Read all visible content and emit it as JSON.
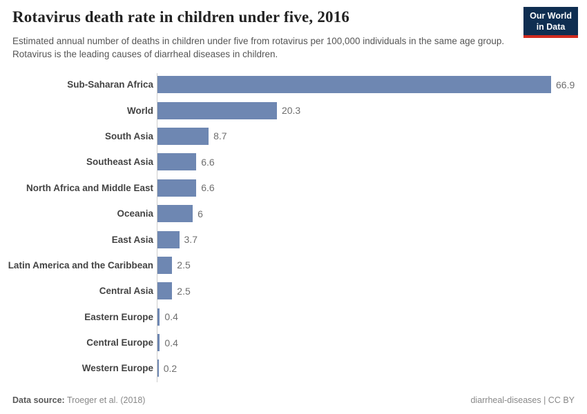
{
  "header": {
    "title": "Rotavirus death rate in children under five, 2016",
    "subtitle": "Estimated annual number of deaths in children under five from rotavirus per 100,000 individuals in the same age group. Rotavirus is the leading causes of diarrheal diseases in children.",
    "logo": {
      "line1": "Our World",
      "line2": "in Data",
      "bg_color": "#0f2e51",
      "accent_color": "#d12b1f"
    }
  },
  "chart_data": {
    "type": "bar",
    "orientation": "horizontal",
    "title": "Rotavirus death rate in children under five, 2016",
    "categories": [
      "Sub-Saharan Africa",
      "World",
      "South Asia",
      "Southeast Asia",
      "North Africa and Middle East",
      "Oceania",
      "East Asia",
      "Latin America and the Caribbean",
      "Central Asia",
      "Eastern Europe",
      "Central Europe",
      "Western Europe"
    ],
    "values": [
      66.9,
      20.3,
      8.7,
      6.6,
      6.6,
      6,
      3.7,
      2.5,
      2.5,
      0.4,
      0.4,
      0.2
    ],
    "value_labels": [
      "66.9",
      "20.3",
      "8.7",
      "6.6",
      "6.6",
      "6",
      "3.7",
      "2.5",
      "2.5",
      "0.4",
      "0.4",
      "0.2"
    ],
    "bar_color": "#6e87b2",
    "axis_color": "#cccccc",
    "xlim": [
      0,
      70
    ],
    "grid": false,
    "legend": "none",
    "value_label_position": "end-of-bar"
  },
  "footer": {
    "datasource_label": "Data source:",
    "datasource_value": "Troeger et al. (2018)",
    "note_right": "diarrheal-diseases | CC BY"
  }
}
